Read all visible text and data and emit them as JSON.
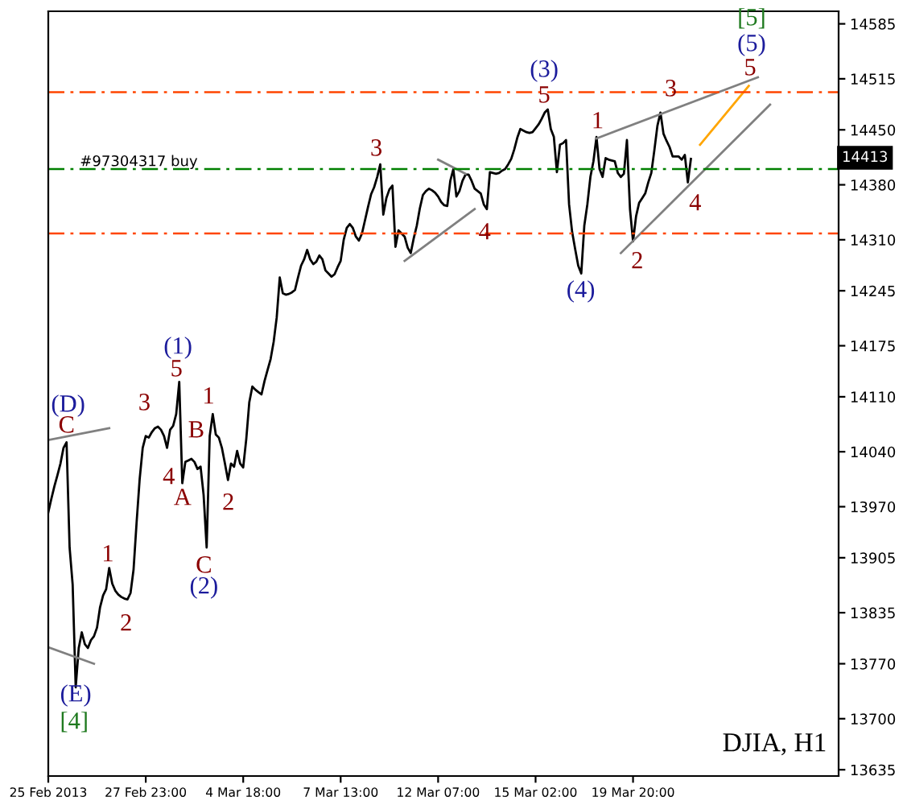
{
  "chart_data": {
    "type": "line",
    "categories": [
      "25 Feb 2013",
      null,
      null,
      null,
      null,
      null,
      null,
      null,
      null,
      null,
      null,
      null,
      null,
      null,
      null,
      null,
      null,
      null,
      null,
      null,
      null,
      null,
      null,
      null,
      null,
      null,
      null,
      null,
      null,
      null,
      null,
      null,
      "27 Feb 23:00",
      null,
      null,
      null,
      null,
      null,
      null,
      null,
      null,
      null,
      null,
      null,
      null,
      null,
      null,
      null,
      null,
      null,
      null,
      null,
      null,
      null,
      null,
      null,
      null,
      null,
      null,
      null,
      null,
      null,
      null,
      null,
      "4 Mar 18:00",
      null,
      null,
      null,
      null,
      null,
      null,
      null,
      null,
      null,
      null,
      null,
      null,
      null,
      null,
      null,
      null,
      null,
      null,
      null,
      null,
      null,
      null,
      null,
      null,
      null,
      null,
      null,
      null,
      null,
      null,
      null,
      "7 Mar 13:00",
      null,
      null,
      null,
      null,
      null,
      null,
      null,
      null,
      null,
      null,
      null,
      null,
      null,
      null,
      null,
      null,
      null,
      null,
      null,
      null,
      null,
      null,
      null,
      null,
      null,
      null,
      null,
      null,
      null,
      null,
      null,
      "12 Mar 07:00",
      null,
      null,
      null,
      null,
      null,
      null,
      null,
      null,
      null,
      null,
      null,
      null,
      null,
      null,
      null,
      null,
      null,
      null,
      null,
      null,
      null,
      null,
      null,
      null,
      null,
      null,
      null,
      null,
      null,
      null,
      null,
      "15 Mar 02:00",
      null,
      null,
      null,
      null,
      null,
      null,
      null,
      null,
      null,
      null,
      null,
      null,
      null,
      null,
      null,
      null,
      null,
      null,
      null,
      null,
      null,
      null,
      null,
      null,
      null,
      null,
      null,
      null,
      null,
      null,
      null,
      "19 Mar 20:00",
      null,
      null,
      null,
      null,
      null,
      null,
      null,
      null,
      null,
      null,
      null,
      null,
      null,
      null,
      null,
      null,
      null,
      null,
      null,
      null,
      null,
      null,
      null,
      null,
      null,
      null,
      null,
      null,
      null,
      null,
      null,
      null,
      null,
      null,
      null,
      null,
      null,
      null,
      null,
      null,
      null,
      null,
      null,
      null,
      null,
      null,
      null,
      null,
      null,
      null,
      null,
      null,
      null,
      null,
      null,
      null,
      null,
      null,
      null,
      null,
      null,
      null,
      null,
      null,
      null,
      null,
      null
    ],
    "series": [
      {
        "color": "#000000",
        "values": [
          13963,
          13980,
          13996,
          14010,
          14025,
          14045,
          14052,
          13918,
          13871,
          13740,
          13790,
          13810,
          13795,
          13790,
          13800,
          13805,
          13816,
          13842,
          13857,
          13865,
          13892,
          13872,
          13863,
          13858,
          13855,
          13853,
          13852,
          13860,
          13890,
          13950,
          14005,
          14045,
          14060,
          14058,
          14065,
          14070,
          14072,
          14068,
          14060,
          14045,
          14068,
          14073,
          14088,
          14129,
          14000,
          14027,
          14029,
          14031,
          14027,
          14018,
          14021,
          13985,
          13918,
          14060,
          14088,
          14062,
          14058,
          14045,
          14025,
          14004,
          14025,
          14021,
          14041,
          14025,
          14020,
          14056,
          14103,
          14123,
          14119,
          14116,
          14113,
          14130,
          14144,
          14158,
          14180,
          14211,
          14262,
          14242,
          14240,
          14241,
          14243,
          14246,
          14262,
          14277,
          14285,
          14297,
          14285,
          14279,
          14282,
          14290,
          14285,
          14271,
          14267,
          14263,
          14266,
          14275,
          14283,
          14310,
          14325,
          14330,
          14325,
          14314,
          14309,
          14318,
          14335,
          14352,
          14368,
          14377,
          14390,
          14406,
          14342,
          14363,
          14374,
          14379,
          14301,
          14322,
          14318,
          14314,
          14300,
          14293,
          14312,
          14328,
          14350,
          14367,
          14372,
          14375,
          14373,
          14370,
          14365,
          14358,
          14354,
          14353,
          14385,
          14400,
          14365,
          14372,
          14385,
          14393,
          14393,
          14385,
          14375,
          14372,
          14369,
          14355,
          14349,
          14396,
          14395,
          14394,
          14395,
          14398,
          14400,
          14406,
          14413,
          14425,
          14440,
          14451,
          14449,
          14447,
          14446,
          14447,
          14452,
          14457,
          14464,
          14472,
          14476,
          14451,
          14441,
          14396,
          14431,
          14433,
          14437,
          14355,
          14320,
          14298,
          14277,
          14267,
          14328,
          14355,
          14390,
          14410,
          14441,
          14400,
          14390,
          14414,
          14412,
          14411,
          14410,
          14395,
          14390,
          14394,
          14437,
          14349,
          14308,
          14340,
          14357,
          14363,
          14369,
          14383,
          14395,
          14424,
          14455,
          14472,
          14445,
          14436,
          14428,
          14416,
          14416,
          14416,
          14412,
          14418,
          14383,
          14413,
          null,
          null,
          null,
          null,
          null,
          null,
          null,
          null,
          null,
          null,
          null,
          null,
          null,
          null,
          null,
          null,
          null,
          null,
          null,
          null,
          null,
          null,
          null,
          null,
          null,
          null,
          null,
          null,
          null,
          null,
          null,
          null,
          null,
          null,
          null,
          null,
          null,
          null,
          null,
          null,
          null,
          null,
          null,
          null,
          null,
          null,
          null,
          null
        ]
      },
      {
        "color": "#808080",
        "values": [
          14055,
          null,
          null,
          null,
          null,
          null,
          null,
          null,
          null,
          null,
          null,
          null,
          null,
          null,
          null,
          null,
          null,
          null,
          null,
          null,
          14070,
          null,
          null,
          null,
          null,
          null,
          null,
          null,
          null,
          null,
          null,
          null,
          null,
          null,
          null,
          null,
          null,
          null,
          null,
          null,
          null,
          null,
          null,
          null,
          null,
          null,
          null,
          null,
          null,
          null,
          null,
          null,
          null,
          null,
          null,
          null,
          null,
          null,
          null,
          null,
          null,
          null,
          null,
          null,
          null,
          null,
          null,
          null,
          null,
          null,
          null,
          null,
          null,
          null,
          null,
          null,
          null,
          null,
          null,
          null,
          null,
          null,
          null,
          null,
          null,
          null,
          null,
          null,
          null,
          null,
          null,
          null,
          null,
          null,
          null,
          null,
          null,
          null,
          null,
          null,
          null,
          null,
          null,
          null,
          null,
          null,
          null,
          null,
          null,
          null,
          null,
          null,
          null,
          null,
          null,
          null,
          null,
          null,
          null,
          null,
          null,
          null,
          null,
          null,
          null,
          null,
          null,
          null,
          null,
          null,
          null,
          null,
          null,
          null,
          null,
          null,
          null,
          null,
          null,
          null,
          null,
          null,
          null,
          null,
          null,
          null,
          null,
          null,
          null,
          null,
          null,
          null,
          null,
          null,
          null,
          null,
          null,
          null,
          null,
          null,
          null,
          null,
          null,
          null,
          null,
          null,
          null,
          null,
          null,
          null,
          null,
          null,
          null,
          null,
          null,
          null,
          null,
          null,
          null,
          null,
          null,
          null,
          null,
          null,
          null,
          null,
          null,
          null,
          null,
          null,
          null,
          null,
          null,
          null,
          null,
          null,
          null,
          null,
          null,
          null,
          null,
          null,
          null,
          null,
          null,
          null,
          null,
          null,
          null,
          null,
          null,
          null,
          null,
          null,
          null,
          null,
          null,
          null,
          null,
          null,
          null,
          null,
          null,
          null,
          null,
          null,
          null,
          null,
          null,
          null,
          null,
          null,
          null,
          null,
          null,
          null,
          null,
          null,
          null,
          null,
          null,
          null,
          null,
          null,
          null,
          null,
          null,
          null,
          null,
          null,
          null,
          null,
          null,
          null,
          null,
          null,
          null,
          null,
          null,
          null
        ]
      },
      {
        "color": "#808080",
        "values": [
          13791,
          null,
          null,
          null,
          null,
          null,
          null,
          null,
          null,
          null,
          null,
          null,
          null,
          null,
          null,
          13770,
          null,
          null,
          null,
          null,
          null,
          null,
          null,
          null,
          null,
          null,
          null,
          null,
          null,
          null,
          null,
          null,
          null,
          null,
          null,
          null,
          null,
          null,
          null,
          null,
          null,
          null,
          null,
          null,
          null,
          null,
          null,
          null,
          null,
          null,
          null,
          null,
          null,
          null,
          null,
          null,
          null,
          null,
          null,
          null,
          null,
          null,
          null,
          null,
          null,
          null,
          null,
          null,
          null,
          null,
          null,
          null,
          null,
          null,
          null,
          null,
          null,
          null,
          null,
          null,
          null,
          null,
          null,
          null,
          null,
          null,
          null,
          null,
          null,
          null,
          null,
          null,
          null,
          null,
          null,
          null,
          null,
          null,
          null,
          null,
          null,
          null,
          null,
          null,
          null,
          null,
          null,
          null,
          null,
          null,
          null,
          null,
          null,
          null,
          null,
          null,
          null,
          null,
          null,
          null,
          null,
          null,
          null,
          null,
          null,
          null,
          null,
          null,
          null,
          null,
          null,
          null,
          null,
          null,
          null,
          null,
          null,
          null,
          null,
          null,
          null,
          null,
          null,
          null,
          null,
          null,
          null,
          null,
          null,
          null,
          null,
          null,
          null,
          null,
          null,
          null,
          null,
          null,
          null,
          null,
          null,
          null,
          null,
          null,
          null,
          null,
          null,
          null,
          null,
          null,
          null,
          null,
          null,
          null,
          null,
          null,
          null,
          null,
          null,
          null,
          null,
          null,
          null,
          null,
          null,
          null,
          null,
          null,
          null,
          null,
          null,
          null,
          null,
          null,
          null,
          null,
          null,
          null,
          null,
          null,
          null,
          null,
          null,
          null,
          null,
          null,
          null,
          null,
          null,
          null,
          null,
          null,
          null,
          null,
          null,
          null,
          null,
          null,
          null,
          null,
          null,
          null,
          null,
          null,
          null,
          null,
          null,
          null,
          null,
          null,
          null,
          null,
          null,
          null,
          null,
          null,
          null,
          null,
          null,
          null,
          null,
          null,
          null,
          null,
          null,
          null,
          null,
          null,
          null,
          null,
          null,
          null,
          null,
          null,
          null,
          null,
          null,
          null,
          null,
          null
        ]
      },
      {
        "color": "#808080",
        "values": [
          null,
          null,
          null,
          null,
          null,
          null,
          null,
          null,
          null,
          null,
          null,
          null,
          null,
          null,
          null,
          null,
          null,
          null,
          null,
          null,
          null,
          null,
          null,
          null,
          null,
          null,
          null,
          null,
          null,
          null,
          null,
          null,
          null,
          null,
          null,
          null,
          null,
          null,
          null,
          null,
          null,
          null,
          null,
          null,
          null,
          null,
          null,
          null,
          null,
          null,
          null,
          null,
          null,
          null,
          null,
          null,
          null,
          null,
          null,
          null,
          null,
          null,
          null,
          null,
          null,
          null,
          null,
          null,
          null,
          null,
          null,
          null,
          null,
          null,
          null,
          null,
          null,
          null,
          null,
          null,
          null,
          null,
          null,
          null,
          null,
          null,
          null,
          null,
          null,
          null,
          null,
          null,
          null,
          null,
          null,
          null,
          null,
          null,
          null,
          null,
          null,
          null,
          null,
          null,
          null,
          null,
          null,
          null,
          null,
          null,
          null,
          null,
          null,
          null,
          null,
          null,
          null,
          14283,
          null,
          null,
          null,
          null,
          null,
          null,
          null,
          null,
          null,
          null,
          null,
          null,
          null,
          null,
          null,
          null,
          null,
          null,
          null,
          null,
          null,
          null,
          14349,
          null,
          null,
          null,
          null,
          null,
          null,
          null,
          null,
          null,
          null,
          null,
          null,
          null,
          null,
          null,
          null,
          null,
          null,
          null,
          null,
          null,
          null,
          null,
          null,
          null,
          null,
          null,
          null,
          null,
          null,
          null,
          null,
          null,
          null,
          null,
          null,
          null,
          null,
          null,
          null,
          null,
          null,
          null,
          null,
          null,
          null,
          null,
          null,
          null,
          null,
          null,
          null,
          null,
          null,
          null,
          null,
          null,
          null,
          null,
          null,
          null,
          null,
          null,
          null,
          null,
          null,
          null,
          null,
          null,
          null,
          null,
          null,
          null,
          null,
          null,
          null,
          null,
          null,
          null,
          null,
          null,
          null,
          null,
          null,
          null,
          null,
          null,
          null,
          null,
          null,
          null,
          null,
          null,
          null,
          null,
          null,
          null,
          null,
          null,
          null,
          null,
          null,
          null,
          null,
          null,
          null,
          null,
          null,
          null,
          null,
          null,
          null,
          null,
          null,
          null,
          null,
          null,
          null,
          null
        ]
      },
      {
        "color": "#808080",
        "values": [
          null,
          null,
          null,
          null,
          null,
          null,
          null,
          null,
          null,
          null,
          null,
          null,
          null,
          null,
          null,
          null,
          null,
          null,
          null,
          null,
          null,
          null,
          null,
          null,
          null,
          null,
          null,
          null,
          null,
          null,
          null,
          null,
          null,
          null,
          null,
          null,
          null,
          null,
          null,
          null,
          null,
          null,
          null,
          null,
          null,
          null,
          null,
          null,
          null,
          null,
          null,
          null,
          null,
          null,
          null,
          null,
          null,
          null,
          null,
          null,
          null,
          null,
          null,
          null,
          null,
          null,
          null,
          null,
          null,
          null,
          null,
          null,
          null,
          null,
          null,
          null,
          null,
          null,
          null,
          null,
          null,
          null,
          null,
          null,
          null,
          null,
          null,
          null,
          null,
          null,
          null,
          null,
          null,
          null,
          null,
          null,
          null,
          null,
          null,
          null,
          null,
          null,
          null,
          null,
          null,
          null,
          null,
          null,
          null,
          null,
          null,
          null,
          null,
          null,
          null,
          null,
          null,
          null,
          null,
          null,
          null,
          null,
          null,
          null,
          null,
          null,
          null,
          null,
          14412,
          null,
          null,
          null,
          null,
          null,
          null,
          null,
          null,
          14394,
          null,
          null,
          null,
          null,
          null,
          null,
          null,
          null,
          null,
          null,
          null,
          null,
          null,
          null,
          null,
          null,
          null,
          null,
          null,
          null,
          null,
          null,
          null,
          null,
          null,
          null,
          null,
          null,
          null,
          null,
          null,
          null,
          null,
          null,
          null,
          null,
          null,
          null,
          null,
          null,
          null,
          null,
          null,
          null,
          null,
          null,
          null,
          null,
          null,
          null,
          null,
          null,
          null,
          null,
          null,
          null,
          null,
          null,
          null,
          null,
          null,
          null,
          null,
          null,
          null,
          null,
          null,
          null,
          null,
          null,
          null,
          null,
          null,
          null,
          null,
          null,
          null,
          null,
          null,
          null,
          null,
          null,
          null,
          null,
          null,
          null,
          null,
          null,
          null,
          null,
          null,
          null,
          null,
          null,
          null,
          null,
          null,
          null,
          null,
          null,
          null,
          null,
          null,
          null,
          null,
          null,
          null,
          null,
          null,
          null,
          null,
          null,
          null,
          null,
          null,
          null,
          null,
          null,
          null,
          null,
          null,
          null
        ]
      },
      {
        "color": "#808080",
        "values": [
          null,
          null,
          null,
          null,
          null,
          null,
          null,
          null,
          null,
          null,
          null,
          null,
          null,
          null,
          null,
          null,
          null,
          null,
          null,
          null,
          null,
          null,
          null,
          null,
          null,
          null,
          null,
          null,
          null,
          null,
          null,
          null,
          null,
          null,
          null,
          null,
          null,
          null,
          null,
          null,
          null,
          null,
          null,
          null,
          null,
          null,
          null,
          null,
          null,
          null,
          null,
          null,
          null,
          null,
          null,
          null,
          null,
          null,
          null,
          null,
          null,
          null,
          null,
          null,
          null,
          null,
          null,
          null,
          null,
          null,
          null,
          null,
          null,
          null,
          null,
          null,
          null,
          null,
          null,
          null,
          null,
          null,
          null,
          null,
          null,
          null,
          null,
          null,
          null,
          null,
          null,
          null,
          null,
          null,
          null,
          null,
          null,
          null,
          null,
          null,
          null,
          null,
          null,
          null,
          null,
          null,
          null,
          null,
          null,
          null,
          null,
          null,
          null,
          null,
          null,
          null,
          null,
          null,
          null,
          null,
          null,
          null,
          null,
          null,
          null,
          null,
          null,
          null,
          null,
          null,
          null,
          null,
          null,
          null,
          null,
          null,
          null,
          null,
          null,
          null,
          null,
          null,
          null,
          null,
          null,
          null,
          null,
          null,
          null,
          null,
          null,
          null,
          null,
          null,
          null,
          null,
          null,
          null,
          null,
          null,
          null,
          null,
          null,
          null,
          null,
          null,
          null,
          null,
          null,
          null,
          null,
          null,
          null,
          null,
          null,
          null,
          null,
          null,
          null,
          null,
          14439,
          null,
          null,
          null,
          null,
          null,
          null,
          null,
          null,
          null,
          null,
          null,
          null,
          null,
          null,
          null,
          null,
          null,
          null,
          null,
          null,
          null,
          null,
          null,
          null,
          null,
          null,
          null,
          null,
          null,
          null,
          null,
          null,
          null,
          null,
          null,
          null,
          null,
          null,
          null,
          null,
          null,
          null,
          null,
          null,
          null,
          null,
          null,
          null,
          null,
          null,
          null,
          null,
          14517,
          null,
          null,
          null,
          null,
          null,
          null,
          null,
          null,
          null,
          null,
          null,
          null,
          null,
          null,
          null,
          null,
          null,
          null,
          null,
          null,
          null,
          null,
          null,
          null,
          null,
          null
        ]
      },
      {
        "color": "#808080",
        "values": [
          null,
          null,
          null,
          null,
          null,
          null,
          null,
          null,
          null,
          null,
          null,
          null,
          null,
          null,
          null,
          null,
          null,
          null,
          null,
          null,
          null,
          null,
          null,
          null,
          null,
          null,
          null,
          null,
          null,
          null,
          null,
          null,
          null,
          null,
          null,
          null,
          null,
          null,
          null,
          null,
          null,
          null,
          null,
          null,
          null,
          null,
          null,
          null,
          null,
          null,
          null,
          null,
          null,
          null,
          null,
          null,
          null,
          null,
          null,
          null,
          null,
          null,
          null,
          null,
          null,
          null,
          null,
          null,
          null,
          null,
          null,
          null,
          null,
          null,
          null,
          null,
          null,
          null,
          null,
          null,
          null,
          null,
          null,
          null,
          null,
          null,
          null,
          null,
          null,
          null,
          null,
          null,
          null,
          null,
          null,
          null,
          null,
          null,
          null,
          null,
          null,
          null,
          null,
          null,
          null,
          null,
          null,
          null,
          null,
          null,
          null,
          null,
          null,
          null,
          null,
          null,
          null,
          null,
          null,
          null,
          null,
          null,
          null,
          null,
          null,
          null,
          null,
          null,
          null,
          null,
          null,
          null,
          null,
          null,
          null,
          null,
          null,
          null,
          null,
          null,
          null,
          null,
          null,
          null,
          null,
          null,
          null,
          null,
          null,
          null,
          null,
          null,
          null,
          null,
          null,
          null,
          null,
          null,
          null,
          null,
          null,
          null,
          null,
          null,
          null,
          null,
          null,
          null,
          null,
          null,
          null,
          null,
          null,
          null,
          null,
          null,
          null,
          null,
          null,
          null,
          null,
          null,
          null,
          null,
          null,
          null,
          null,
          null,
          14293,
          null,
          null,
          null,
          null,
          null,
          null,
          null,
          null,
          null,
          null,
          null,
          null,
          null,
          null,
          null,
          null,
          null,
          null,
          null,
          null,
          null,
          null,
          null,
          null,
          null,
          null,
          null,
          null,
          null,
          null,
          null,
          null,
          null,
          null,
          null,
          null,
          null,
          null,
          null,
          null,
          null,
          null,
          null,
          null,
          null,
          null,
          null,
          null,
          14482,
          null,
          null,
          null,
          null,
          null,
          null,
          null,
          null,
          null,
          null,
          null,
          null,
          null,
          null,
          null,
          null,
          null,
          null,
          null,
          null,
          null,
          null
        ]
      },
      {
        "color": "#ffa500",
        "values": [
          null,
          null,
          null,
          null,
          null,
          null,
          null,
          null,
          null,
          null,
          null,
          null,
          null,
          null,
          null,
          null,
          null,
          null,
          null,
          null,
          null,
          null,
          null,
          null,
          null,
          null,
          null,
          null,
          null,
          null,
          null,
          null,
          null,
          null,
          null,
          null,
          null,
          null,
          null,
          null,
          null,
          null,
          null,
          null,
          null,
          null,
          null,
          null,
          null,
          null,
          null,
          null,
          null,
          null,
          null,
          null,
          null,
          null,
          null,
          null,
          null,
          null,
          null,
          null,
          null,
          null,
          null,
          null,
          null,
          null,
          null,
          null,
          null,
          null,
          null,
          null,
          null,
          null,
          null,
          null,
          null,
          null,
          null,
          null,
          null,
          null,
          null,
          null,
          null,
          null,
          null,
          null,
          null,
          null,
          null,
          null,
          null,
          null,
          null,
          null,
          null,
          null,
          null,
          null,
          null,
          null,
          null,
          null,
          null,
          null,
          null,
          null,
          null,
          null,
          null,
          null,
          null,
          null,
          null,
          null,
          null,
          null,
          null,
          null,
          null,
          null,
          null,
          null,
          null,
          null,
          null,
          null,
          null,
          null,
          null,
          null,
          null,
          null,
          null,
          null,
          null,
          null,
          null,
          null,
          null,
          null,
          null,
          null,
          null,
          null,
          null,
          null,
          null,
          null,
          null,
          null,
          null,
          null,
          null,
          null,
          null,
          null,
          null,
          null,
          null,
          null,
          null,
          null,
          null,
          null,
          null,
          null,
          null,
          null,
          null,
          null,
          null,
          null,
          null,
          null,
          null,
          null,
          null,
          null,
          null,
          null,
          null,
          null,
          null,
          null,
          null,
          null,
          null,
          null,
          null,
          null,
          null,
          null,
          null,
          null,
          null,
          null,
          null,
          null,
          null,
          null,
          null,
          null,
          null,
          null,
          null,
          null,
          null,
          null,
          14431,
          null,
          null,
          null,
          null,
          null,
          null,
          null,
          null,
          null,
          null,
          null,
          null,
          null,
          null,
          null,
          14506,
          null,
          null,
          null,
          null,
          null,
          null,
          null,
          null,
          null,
          null,
          null,
          null,
          null,
          null,
          null,
          null,
          null,
          null,
          null,
          null,
          null,
          null,
          null,
          null,
          null,
          null,
          null,
          null,
          null
        ]
      }
    ],
    "ylim": [
      13627,
      14601
    ],
    "yticks": [
      13635,
      13700,
      13770,
      13835,
      13905,
      13970,
      14040,
      14110,
      14175,
      14245,
      14310,
      14380,
      14450,
      14515,
      14585
    ],
    "ref_lines": [
      {
        "axis": "y",
        "value": 14498,
        "color": "#ff4500",
        "line_style": "dashdot"
      },
      {
        "axis": "y",
        "value": 14400,
        "color": "#008000",
        "line_style": "dashdot",
        "label": "#97304317 buy"
      },
      {
        "axis": "y",
        "value": 14318,
        "color": "#ff4500",
        "line_style": "dashdot"
      }
    ],
    "grid": false,
    "annotations": [
      "(D)",
      "C",
      "(E)",
      "[4]",
      "1",
      "2",
      "3",
      "5",
      "(1)",
      "4",
      "A",
      "B",
      "1",
      "2",
      "C",
      "(2)",
      "3",
      "4",
      "(3)",
      "5",
      "1",
      "(4)",
      "2",
      "3",
      "4",
      "5",
      "(5)",
      "[5]",
      "14413",
      "DJIA, H1"
    ]
  }
}
